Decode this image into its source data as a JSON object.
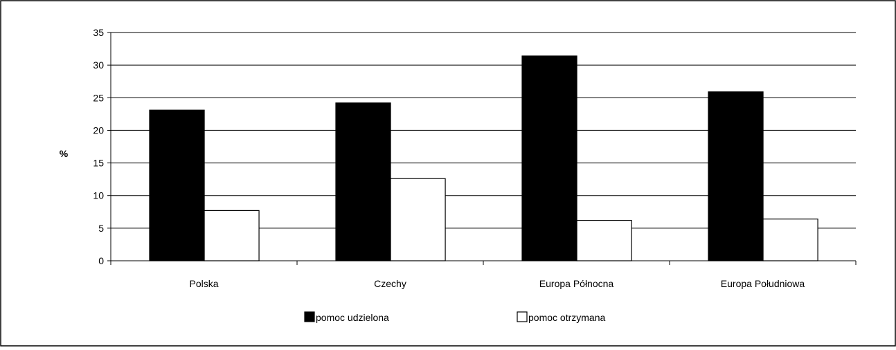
{
  "chart_data": {
    "type": "bar",
    "title": "",
    "xlabel": "",
    "ylabel": "%",
    "ylim": [
      0,
      35
    ],
    "yticks": [
      0,
      5,
      10,
      15,
      20,
      25,
      30,
      35
    ],
    "grid": "horizontal",
    "legend_position": "bottom",
    "categories": [
      "Polska",
      "Czechy",
      "Europa Północna",
      "Europa Południowa"
    ],
    "series": [
      {
        "name": "pomoc udzielona",
        "values": [
          23.1,
          24.2,
          31.4,
          25.9
        ],
        "color": "#000000"
      },
      {
        "name": "pomoc otrzymana",
        "values": [
          7.7,
          12.6,
          6.2,
          6.4
        ],
        "color": "#ffffff"
      }
    ]
  }
}
